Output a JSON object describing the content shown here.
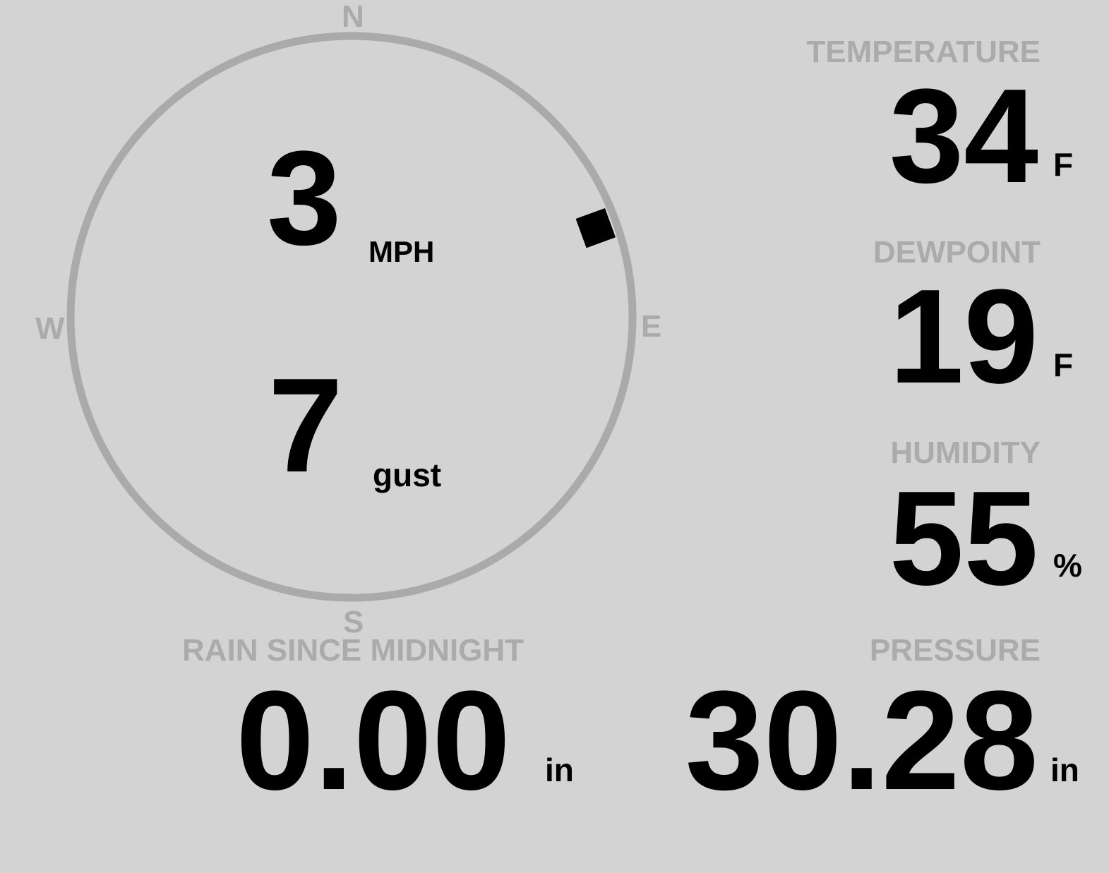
{
  "compass": {
    "north": "N",
    "south": "S",
    "east": "E",
    "west": "W",
    "wind_direction_deg": 70,
    "ring_color": "#aaaaaa",
    "marker_color": "#000000"
  },
  "wind": {
    "speed": "3",
    "speed_unit": "MPH",
    "gust": "7",
    "gust_unit": "gust"
  },
  "temperature": {
    "label": "TEMPERATURE",
    "value": "34",
    "unit": "F"
  },
  "dewpoint": {
    "label": "DEWPOINT",
    "value": "19",
    "unit": "F"
  },
  "humidity": {
    "label": "HUMIDITY",
    "value": "55",
    "unit": "%"
  },
  "rain": {
    "label": "RAIN SINCE MIDNIGHT",
    "value": "0.00",
    "unit": "in"
  },
  "pressure": {
    "label": "PRESSURE",
    "value": "30.28",
    "unit": "in"
  },
  "colors": {
    "background": "#d3d3d3",
    "label": "#ababab",
    "value": "#000000"
  }
}
